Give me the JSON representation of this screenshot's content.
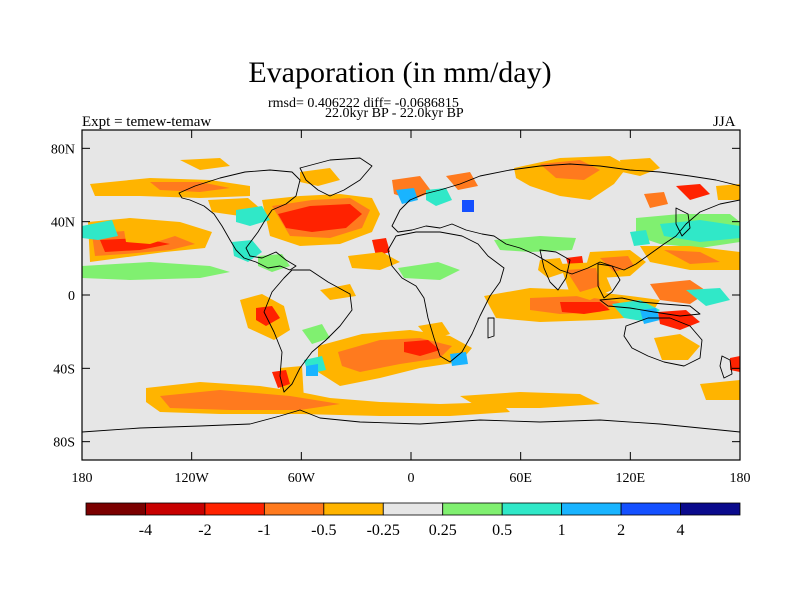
{
  "header": {
    "title": "Evaporation (in mm/day)",
    "stats": "rmsd= 0.406222 diff= -0.0686815",
    "period": "22.0kyr BP - 22.0kyr BP",
    "experiment": "Expt = temew-temaw",
    "season": "JJA"
  },
  "map": {
    "projection": "cylindrical equidistant",
    "lon_ticks": [
      {
        "value": -180,
        "label": "180"
      },
      {
        "value": -120,
        "label": "120W"
      },
      {
        "value": -60,
        "label": "60W"
      },
      {
        "value": 0,
        "label": "0"
      },
      {
        "value": 60,
        "label": "60E"
      },
      {
        "value": 120,
        "label": "120E"
      },
      {
        "value": 180,
        "label": "180"
      }
    ],
    "lat_ticks": [
      {
        "value": 80,
        "label": "80N"
      },
      {
        "value": 40,
        "label": "40N"
      },
      {
        "value": 0,
        "label": "0"
      },
      {
        "value": -40,
        "label": "40S"
      },
      {
        "value": -80,
        "label": "80S"
      }
    ],
    "background_color": "#e6e6e6"
  },
  "colorbar": {
    "colors": [
      "#7b0000",
      "#c80000",
      "#ff2200",
      "#ff7a1e",
      "#ffb400",
      "#e6e6e6",
      "#80f070",
      "#30e8c8",
      "#19b4ff",
      "#1450ff",
      "#0a0a8c"
    ],
    "labels": [
      {
        "value": "-4",
        "after_box": 1
      },
      {
        "value": "-2",
        "after_box": 2
      },
      {
        "value": "-1",
        "after_box": 3
      },
      {
        "value": "-0.5",
        "after_box": 4
      },
      {
        "value": "-0.25",
        "after_box": 5
      },
      {
        "value": "0.25",
        "after_box": 6
      },
      {
        "value": "0.5",
        "after_box": 7
      },
      {
        "value": "1",
        "after_box": 8
      },
      {
        "value": "2",
        "after_box": 9
      },
      {
        "value": "4",
        "after_box": 10
      }
    ]
  }
}
